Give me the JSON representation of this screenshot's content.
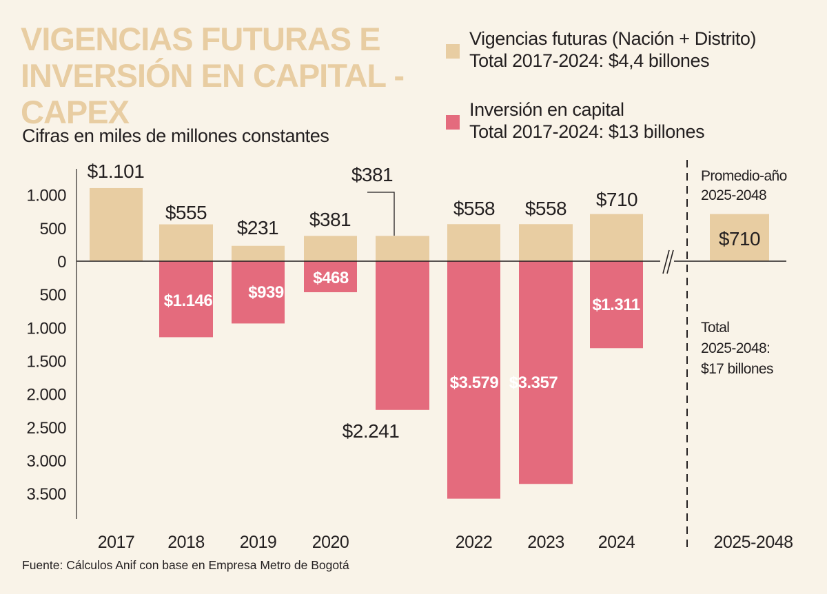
{
  "chart_data": {
    "type": "bar",
    "title": "VIGENCIAS FUTURAS E INVERSIÓN EN CAPITAL - CAPEX",
    "subtitle": "Cifras en miles de millones constantes",
    "xlabel": "",
    "ylabel": "",
    "ylim": [
      -3900,
      1200
    ],
    "grid": false,
    "legend_position": "top-right",
    "y_ticks": [
      {
        "value": 1000,
        "label": "1.000"
      },
      {
        "value": 500,
        "label": "500"
      },
      {
        "value": 0,
        "label": "0"
      },
      {
        "value": -500,
        "label": "500"
      },
      {
        "value": -1000,
        "label": "1.000"
      },
      {
        "value": -1500,
        "label": "1.500"
      },
      {
        "value": -2000,
        "label": "2.000"
      },
      {
        "value": -2500,
        "label": "2.500"
      },
      {
        "value": -3000,
        "label": "3.000"
      },
      {
        "value": -3500,
        "label": "3.500"
      }
    ],
    "categories": [
      "2017",
      "2018",
      "2019",
      "2020",
      "",
      "2022",
      "2023",
      "2024",
      "2025-2048"
    ],
    "series": [
      {
        "name": "Vigencias futuras (Nación + Distrito)",
        "subtitle": "Total 2017-2024: $4,4 billones",
        "color": "#e8cda2",
        "values": [
          1101,
          555,
          231,
          381,
          381,
          558,
          558,
          710,
          710
        ],
        "labels": [
          "$1.101",
          "$555",
          "$231",
          "$381",
          "$381",
          "$558",
          "$558",
          "$710",
          "$710"
        ]
      },
      {
        "name": "Inversión en capital",
        "subtitle": "Total 2017-2024: $13 billones",
        "color": "#e46b7d",
        "values": [
          0,
          -1146,
          -939,
          -468,
          -2241,
          -3579,
          -3357,
          -1311,
          null
        ],
        "labels": [
          "",
          "$1.146",
          "$939",
          "$468",
          "$2.241",
          "$3.579",
          "$3.357",
          "$1.311",
          ""
        ]
      }
    ],
    "annotations": {
      "projection_header_line1": "Promedio-año",
      "projection_header_line2": "2025-2048",
      "projection_total_line1": "Total",
      "projection_total_line2": "2025-2048:",
      "projection_total_line3": "$17 billones",
      "axis_break": "//"
    }
  },
  "legend": [
    {
      "line1": "Vigencias futuras (Nación + Distrito)",
      "line2": "Total 2017-2024: $4,4 billones",
      "color": "#e8cda2"
    },
    {
      "line1": "Inversión en capital",
      "line2": "Total 2017-2024: $13 billones",
      "color": "#e46b7d"
    }
  ],
  "source": "Fuente: Cálculos Anif con base en Empresa Metro de Bogotá"
}
